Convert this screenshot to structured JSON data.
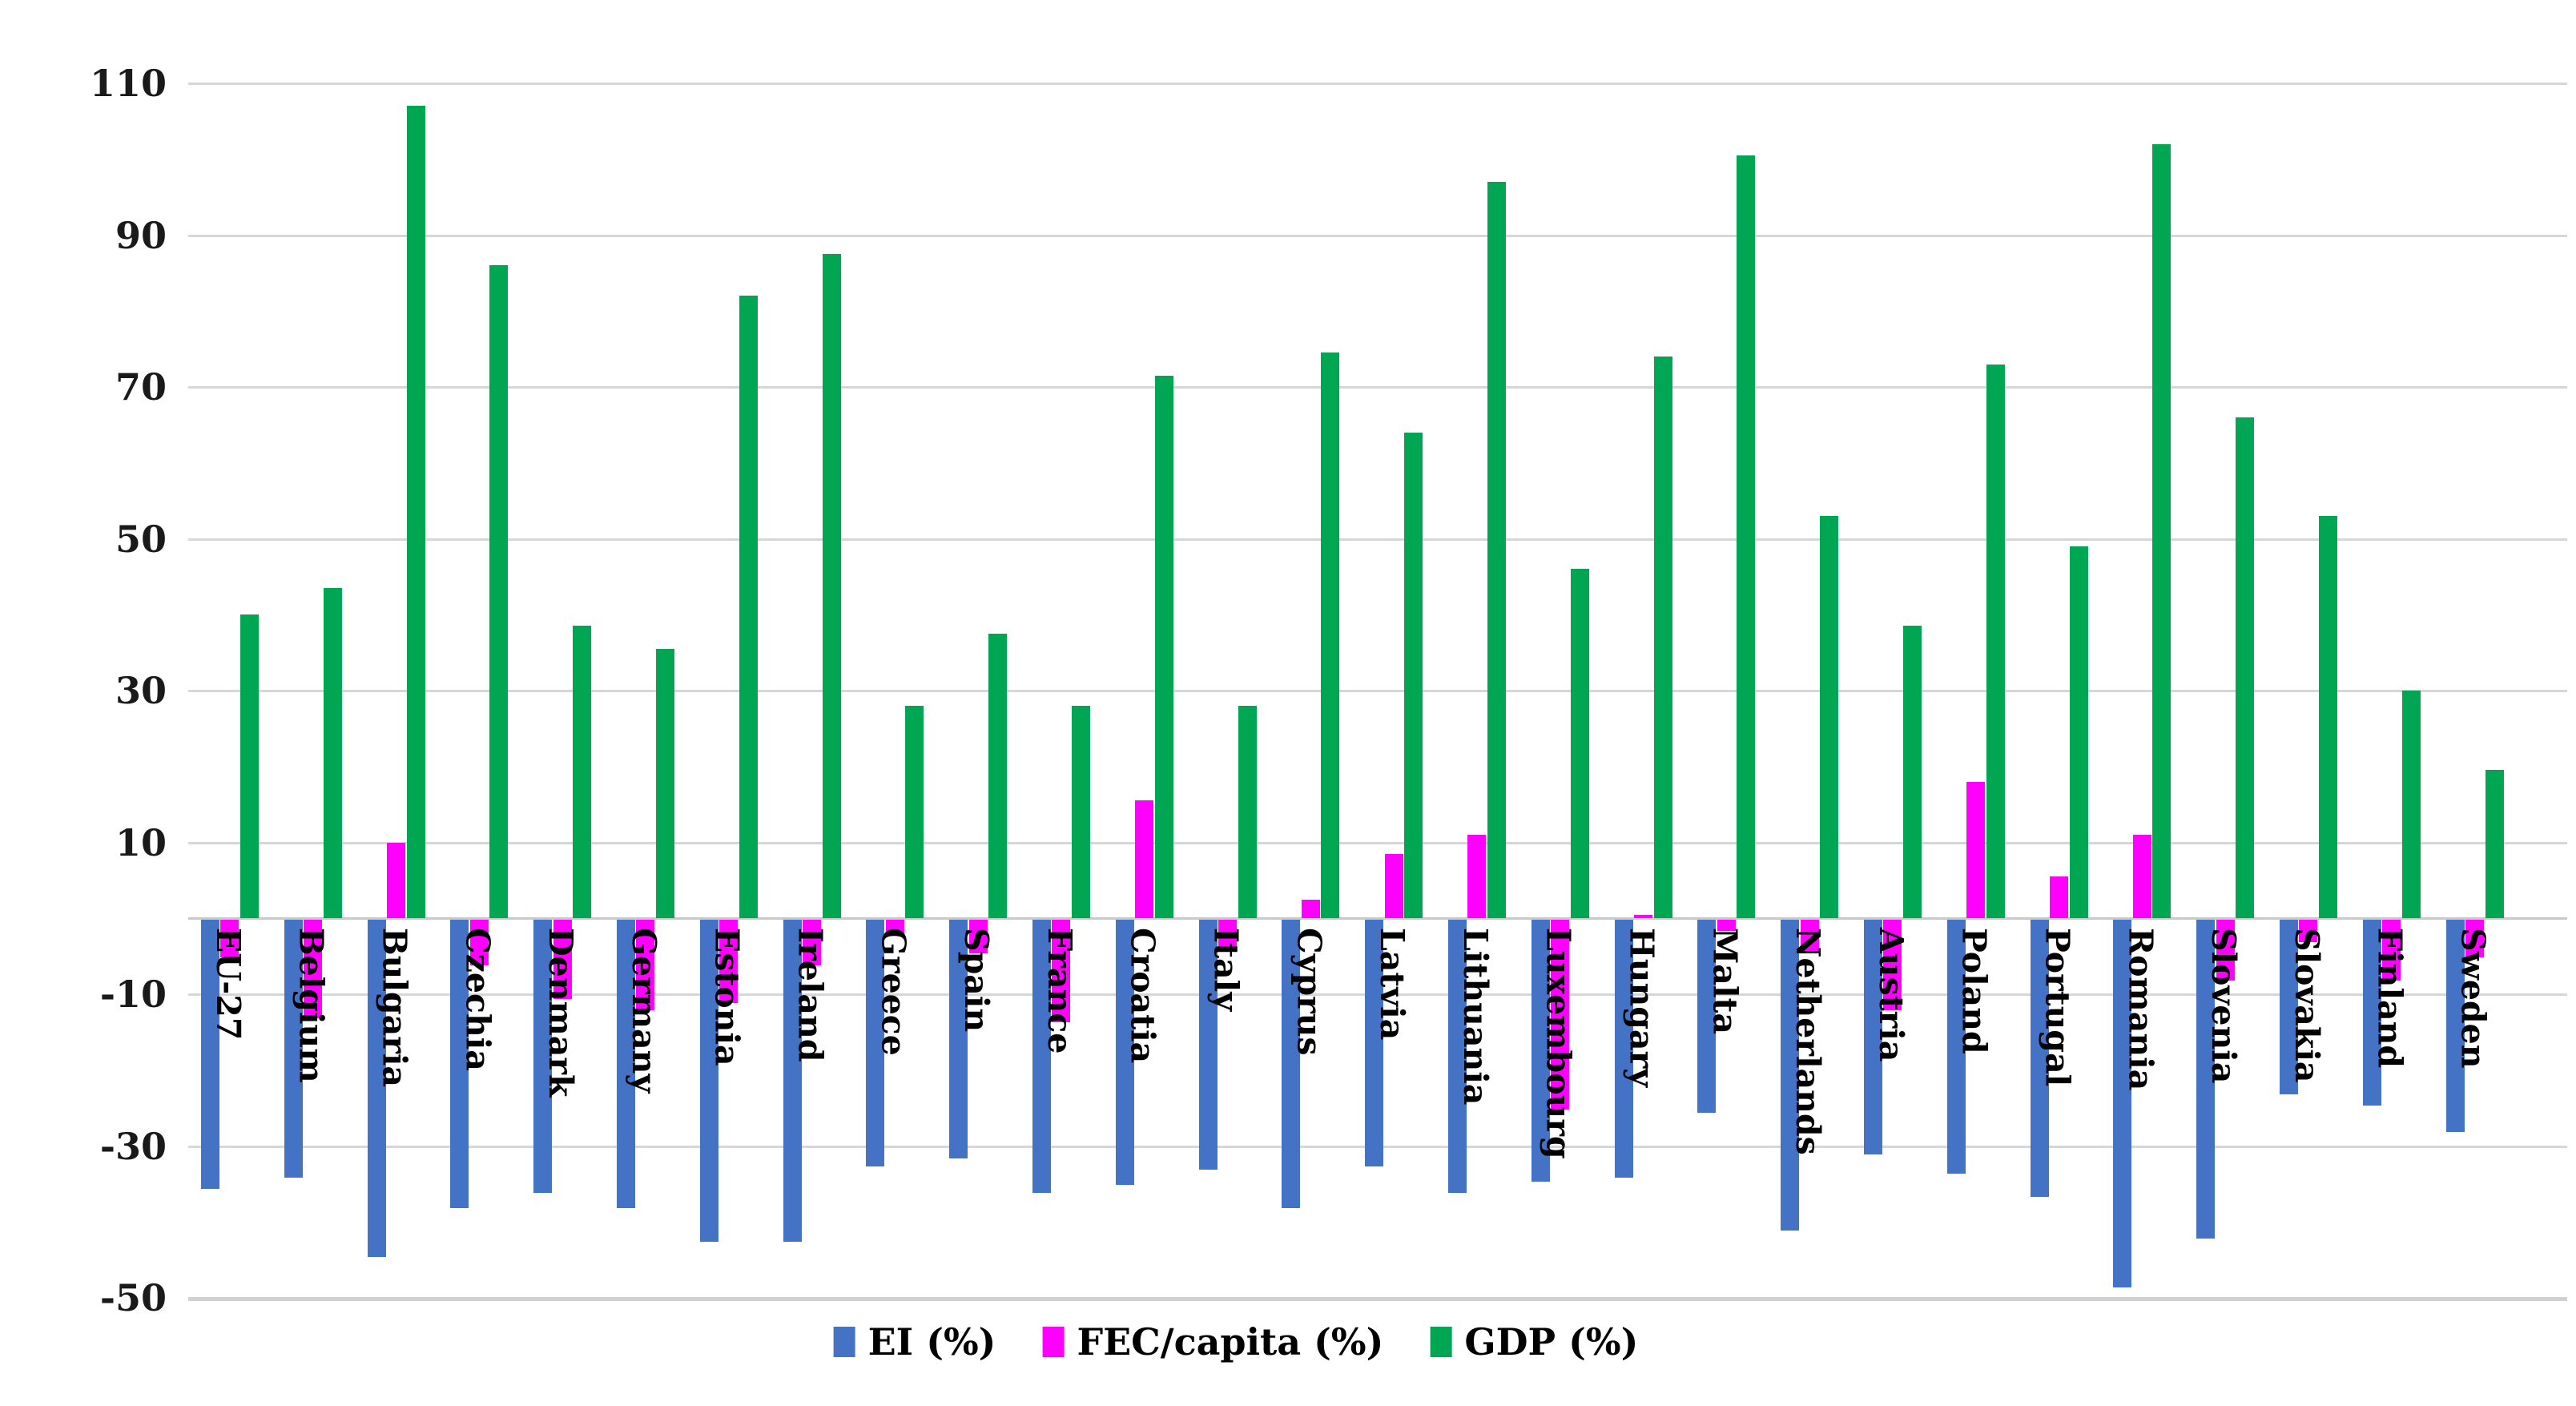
{
  "chart_data": {
    "type": "bar",
    "title": "",
    "categories": [
      "EU-27",
      "Belgium",
      "Bulgaria",
      "Czechia",
      "Denmark",
      "Germany",
      "Estonia",
      "Ireland",
      "Greece",
      "Spain",
      "France",
      "Croatia",
      "Italy",
      "Cyprus",
      "Latvia",
      "Lithuania",
      "Luxembourg",
      "Hungary",
      "Malta",
      "Netherlands",
      "Austria",
      "Poland",
      "Portugal",
      "Romania",
      "Slovenia",
      "Slovakia",
      "Finland",
      "Sweden"
    ],
    "series": [
      {
        "name": "EI (%)",
        "color": "#4472C4",
        "values": [
          -35.5,
          -34,
          -44.5,
          -38,
          -36,
          -38,
          -42.5,
          -42.5,
          -32.5,
          -31.5,
          -36,
          -35,
          -33,
          -38,
          -32.5,
          -36,
          -34.5,
          -34,
          -25.5,
          -41,
          -31,
          -33.5,
          -36.5,
          -48.5,
          -42,
          -23,
          -24.5,
          -28
        ]
      },
      {
        "name": "FEC/capita (%)",
        "color": "#FF00FF",
        "values": [
          -5,
          -13,
          10,
          -6,
          -10.5,
          -12,
          -11,
          -6,
          -2,
          -4.5,
          -13.5,
          15.5,
          -3.5,
          2.5,
          8.5,
          11,
          -25,
          0.5,
          -1.5,
          -4.5,
          -12,
          18,
          5.5,
          11,
          -8,
          -3,
          -8,
          -5
        ]
      },
      {
        "name": "GDP (%)",
        "color": "#00A651",
        "values": [
          40,
          43.5,
          107,
          86,
          38.5,
          35.5,
          82,
          87.5,
          28,
          37.5,
          28,
          71.5,
          28,
          74.5,
          64,
          97,
          46,
          74,
          100.5,
          53,
          38.5,
          73,
          49,
          102,
          66,
          53,
          30,
          19.5
        ]
      }
    ],
    "ylim": [
      -50,
      110
    ],
    "yticks": [
      110,
      90,
      70,
      50,
      30,
      10,
      -10,
      -30,
      -50
    ],
    "grid": true,
    "legend_position": "bottom",
    "background": "#FFFFFF",
    "gridline_color": "#D6D6D6"
  }
}
